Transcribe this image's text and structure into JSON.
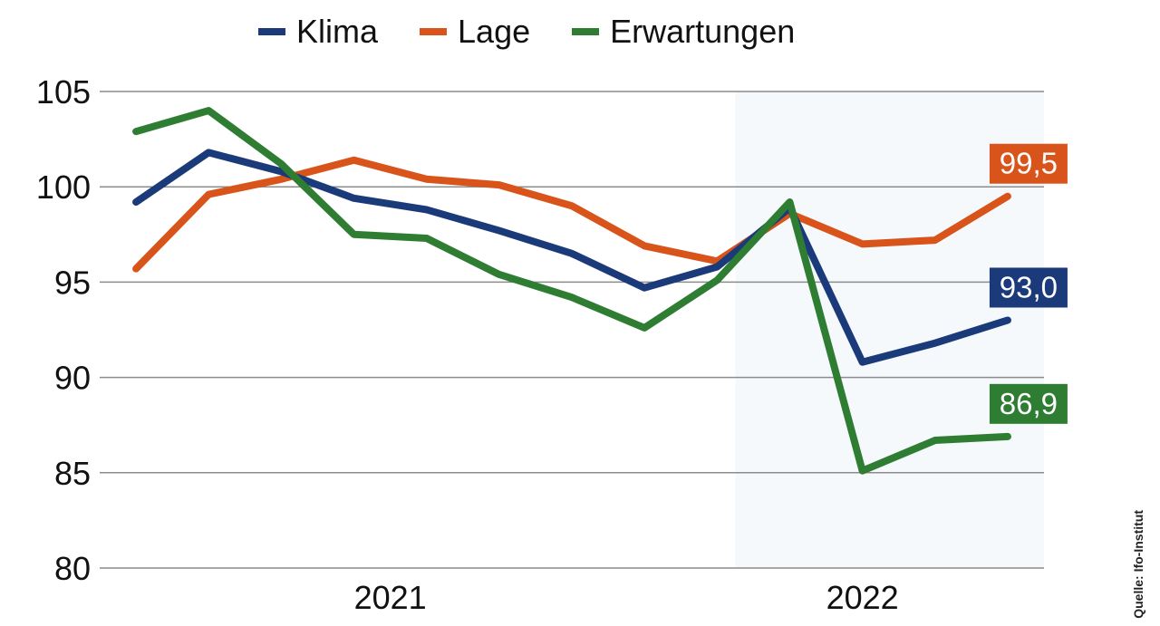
{
  "colors": {
    "klima": "#1b3a7a",
    "lage": "#d9541a",
    "erwartungen": "#2e7d32",
    "grid": "#8c8c8c",
    "shade": "#f5f9fc"
  },
  "source": "Quelle: Ifo-Institut",
  "chart_data": {
    "type": "line",
    "x": [
      1,
      2,
      3,
      4,
      5,
      6,
      7,
      8,
      9,
      10,
      11,
      12,
      13
    ],
    "xlabel": "",
    "ylabel": "",
    "ylim": [
      80,
      105
    ],
    "yticks": [
      "80",
      "85",
      "90",
      "95",
      "100",
      "105"
    ],
    "xticks": [
      {
        "label": "2021"
      },
      {
        "label": "2022"
      }
    ],
    "legend": "top",
    "grid": true,
    "series": [
      {
        "name": "Klima",
        "key": "klima",
        "values": [
          99.2,
          101.8,
          100.8,
          99.4,
          98.8,
          97.7,
          96.5,
          94.7,
          95.8,
          98.9,
          90.8,
          91.8,
          93.0
        ],
        "end_label": "93,0"
      },
      {
        "name": "Lage",
        "key": "lage",
        "values": [
          95.7,
          99.6,
          100.4,
          101.4,
          100.4,
          100.1,
          99.0,
          96.9,
          96.1,
          98.6,
          97.0,
          97.2,
          99.5
        ],
        "end_label": "99,5"
      },
      {
        "name": "Erwartungen",
        "key": "erwartungen",
        "values": [
          102.9,
          104.0,
          101.2,
          97.5,
          97.3,
          95.4,
          94.2,
          92.6,
          95.1,
          99.2,
          85.1,
          86.7,
          86.9
        ],
        "end_label": "86,9"
      }
    ]
  }
}
